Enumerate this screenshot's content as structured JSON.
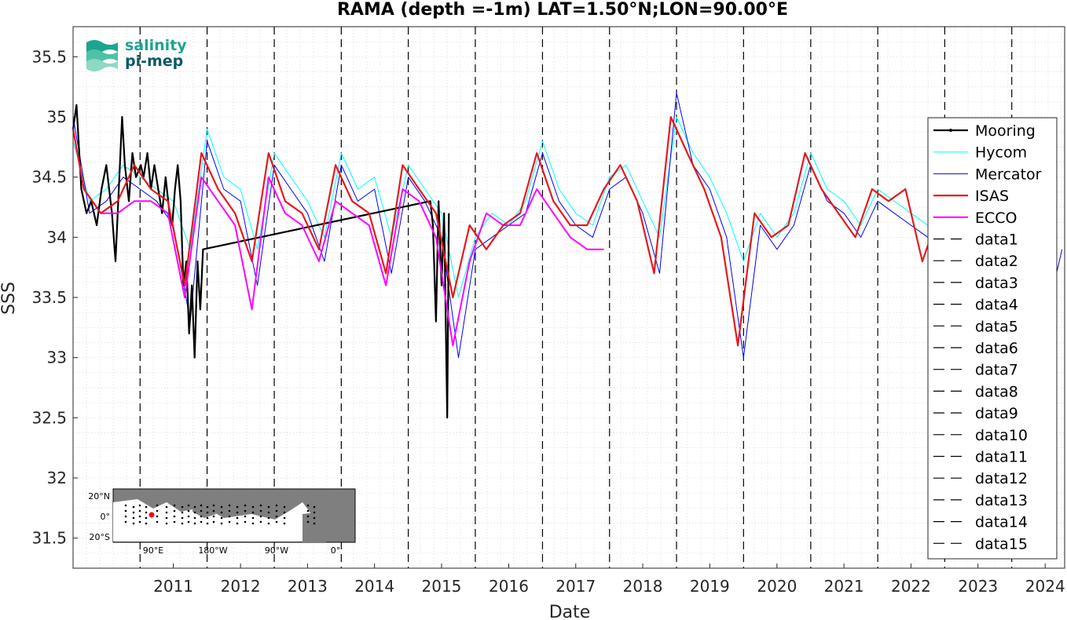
{
  "chart_data": {
    "type": "line",
    "title": "RAMA (depth =-1m) LAT=1.50°N;LON=90.00°E",
    "xlabel": "Date",
    "ylabel": "SSS",
    "xlim": [
      "2010-01-01",
      "2024-10-15"
    ],
    "ylim": [
      31.25,
      35.75
    ],
    "x_ticks": [
      "2011",
      "2012",
      "2013",
      "2014",
      "2015",
      "2016",
      "2017",
      "2018",
      "2019",
      "2020",
      "2021",
      "2022",
      "2023",
      "2024"
    ],
    "y_ticks": [
      "31.5",
      "32",
      "32.5",
      "33",
      "33.5",
      "34",
      "34.5",
      "35",
      "35.5"
    ],
    "grid": "dotted minor",
    "legend_position": "right",
    "legend": [
      "Mooring",
      "Hycom",
      "Mercator",
      "ISAS",
      "ECCO",
      "data1",
      "data2",
      "data3",
      "data4",
      "data5",
      "data6",
      "data7",
      "data8",
      "data9",
      "data10",
      "data11",
      "data12",
      "data13",
      "data14",
      "data15"
    ],
    "year_markers": [
      "2011-01-01",
      "2012-01-01",
      "2013-01-01",
      "2014-01-01",
      "2015-01-01",
      "2016-01-01",
      "2017-01-01",
      "2018-01-01",
      "2019-01-01",
      "2020-01-01",
      "2021-01-01",
      "2022-01-01",
      "2023-01-01",
      "2024-01-01",
      "2025-01-01"
    ],
    "series": [
      {
        "name": "Mooring",
        "color": "#000000",
        "x": [
          "2010-01-01",
          "2010-01-20",
          "2010-02-15",
          "2010-03-15",
          "2010-04-10",
          "2010-05-10",
          "2010-06-05",
          "2010-07-01",
          "2010-08-01",
          "2010-08-20",
          "2010-09-10",
          "2010-09-25",
          "2010-10-10",
          "2010-11-01",
          "2010-11-20",
          "2010-12-10",
          "2011-01-05",
          "2011-01-20",
          "2011-02-10",
          "2011-03-01",
          "2011-03-20",
          "2011-04-10",
          "2011-05-01",
          "2011-05-20",
          "2011-06-10",
          "2011-06-25",
          "2011-07-10",
          "2011-07-25",
          "2011-08-10",
          "2011-08-25",
          "2011-09-10",
          "2011-09-25",
          "2011-10-10",
          "2011-10-25",
          "2011-11-10",
          "2011-11-25",
          "2011-12-10",
          "2015-05-01",
          "2015-05-15",
          "2015-06-01",
          "2015-06-15",
          "2015-07-01",
          "2015-07-15",
          "2015-08-01",
          "2015-08-10"
        ],
        "y": [
          34.9,
          35.1,
          34.4,
          34.2,
          34.3,
          34.1,
          34.4,
          34.6,
          34.2,
          33.8,
          34.5,
          35.0,
          34.6,
          34.3,
          34.7,
          34.5,
          34.6,
          34.5,
          34.7,
          34.4,
          34.6,
          34.4,
          34.2,
          34.5,
          34.2,
          34.1,
          34.4,
          34.6,
          34.3,
          33.6,
          33.8,
          33.2,
          33.6,
          33.0,
          33.8,
          33.4,
          33.9,
          34.3,
          34.1,
          33.3,
          34.3,
          33.6,
          34.2,
          32.5,
          34.2
        ]
      },
      {
        "name": "Hycom",
        "color": "#00ffff",
        "x": [
          "2010-01-01",
          "2010-04-01",
          "2010-07-01",
          "2010-10-01",
          "2011-01-01",
          "2011-04-01",
          "2011-07-01",
          "2011-10-01",
          "2012-01-01",
          "2012-04-01",
          "2012-07-01",
          "2012-10-01",
          "2013-01-01",
          "2013-04-01",
          "2013-07-01",
          "2013-10-01",
          "2014-01-01",
          "2014-04-01",
          "2014-07-01",
          "2014-10-01",
          "2015-01-01",
          "2015-04-01",
          "2015-07-01",
          "2015-10-01",
          "2016-01-01",
          "2016-04-01",
          "2016-07-01",
          "2016-10-01",
          "2017-01-01",
          "2017-04-01",
          "2017-07-01",
          "2017-10-01",
          "2018-01-01",
          "2018-04-01",
          "2018-07-01",
          "2018-10-01",
          "2019-01-01",
          "2019-04-01",
          "2019-07-01",
          "2019-10-01",
          "2020-01-01",
          "2020-04-01",
          "2020-07-01",
          "2020-10-01",
          "2021-01-01",
          "2021-04-01",
          "2021-07-01",
          "2021-10-01",
          "2022-01-01",
          "2022-04-01",
          "2022-07-01",
          "2022-10-01",
          "2022-12-01"
        ],
        "y": [
          34.8,
          34.3,
          34.4,
          34.6,
          34.5,
          34.4,
          34.3,
          33.9,
          34.9,
          34.5,
          34.4,
          33.9,
          34.7,
          34.5,
          34.3,
          34.0,
          34.7,
          34.4,
          34.5,
          34.0,
          34.6,
          34.4,
          34.2,
          33.5,
          34.0,
          34.2,
          34.1,
          34.3,
          34.8,
          34.4,
          34.2,
          34.1,
          34.5,
          34.6,
          34.3,
          34.0,
          35.0,
          34.7,
          34.5,
          34.2,
          33.8,
          34.2,
          34.0,
          34.2,
          34.7,
          34.4,
          34.3,
          34.1,
          34.4,
          34.3,
          34.2,
          34.1,
          34.9
        ]
      },
      {
        "name": "Mercator",
        "color": "#0000ff",
        "x": [
          "2010-01-01",
          "2010-04-01",
          "2010-07-01",
          "2010-10-01",
          "2011-01-01",
          "2011-04-01",
          "2011-07-01",
          "2011-10-01",
          "2012-01-01",
          "2012-04-01",
          "2012-07-01",
          "2012-10-01",
          "2013-01-01",
          "2013-04-01",
          "2013-07-01",
          "2013-10-01",
          "2014-01-01",
          "2014-04-01",
          "2014-07-01",
          "2014-10-01",
          "2015-01-01",
          "2015-04-01",
          "2015-07-01",
          "2015-10-01",
          "2016-01-01",
          "2016-04-01",
          "2016-07-01",
          "2016-10-01",
          "2017-01-01",
          "2017-04-01",
          "2017-07-01",
          "2017-10-01",
          "2018-01-01",
          "2018-04-01",
          "2018-07-01",
          "2018-10-01",
          "2019-01-01",
          "2019-04-01",
          "2019-07-01",
          "2019-10-01",
          "2020-01-01",
          "2020-04-01",
          "2020-07-01",
          "2020-10-01",
          "2021-01-01",
          "2021-04-01",
          "2021-07-01",
          "2021-10-01",
          "2022-01-01",
          "2022-04-01",
          "2022-07-01",
          "2022-10-01",
          "2024-08-01",
          "2024-10-01"
        ],
        "y": [
          35.0,
          34.2,
          34.3,
          34.5,
          34.4,
          34.3,
          34.1,
          33.3,
          34.8,
          34.4,
          34.3,
          33.6,
          34.6,
          34.4,
          34.2,
          33.8,
          34.6,
          34.3,
          34.4,
          33.7,
          34.5,
          34.3,
          34.0,
          33.0,
          33.9,
          34.0,
          34.1,
          34.2,
          34.7,
          34.3,
          34.1,
          34.0,
          34.4,
          34.5,
          34.2,
          33.7,
          35.2,
          34.6,
          34.4,
          34.0,
          33.0,
          34.1,
          33.9,
          34.1,
          34.6,
          34.3,
          34.2,
          34.0,
          34.3,
          34.2,
          34.1,
          34.0,
          33.5,
          33.9
        ]
      },
      {
        "name": "ISAS",
        "color": "#e41a1c",
        "x": [
          "2010-01-01",
          "2010-03-01",
          "2010-06-01",
          "2010-09-01",
          "2010-12-01",
          "2011-03-01",
          "2011-06-01",
          "2011-09-01",
          "2011-12-01",
          "2012-03-01",
          "2012-06-01",
          "2012-09-01",
          "2012-12-01",
          "2013-03-01",
          "2013-06-01",
          "2013-09-01",
          "2013-12-01",
          "2014-03-01",
          "2014-06-01",
          "2014-09-01",
          "2014-12-01",
          "2015-03-01",
          "2015-06-01",
          "2015-09-01",
          "2015-12-01",
          "2016-03-01",
          "2016-06-01",
          "2016-09-01",
          "2016-12-01",
          "2017-03-01",
          "2017-06-01",
          "2017-09-01",
          "2017-12-01",
          "2018-03-01",
          "2018-06-01",
          "2018-09-01",
          "2018-12-01",
          "2019-03-01",
          "2019-06-01",
          "2019-09-01",
          "2019-12-01",
          "2020-03-01",
          "2020-06-01",
          "2020-09-01",
          "2020-12-01",
          "2021-03-01",
          "2021-06-01",
          "2021-09-01",
          "2021-12-01",
          "2022-03-01",
          "2022-06-01",
          "2022-09-01",
          "2022-12-01"
        ],
        "y": [
          34.9,
          34.4,
          34.2,
          34.3,
          34.6,
          34.4,
          34.3,
          33.6,
          34.7,
          34.4,
          34.2,
          33.8,
          34.7,
          34.3,
          34.2,
          33.9,
          34.6,
          34.3,
          34.2,
          33.7,
          34.6,
          34.4,
          34.2,
          33.5,
          34.1,
          33.9,
          34.1,
          34.2,
          34.7,
          34.3,
          34.1,
          34.1,
          34.4,
          34.6,
          34.3,
          33.7,
          35.0,
          34.7,
          34.4,
          34.0,
          33.1,
          34.2,
          34.0,
          34.1,
          34.7,
          34.4,
          34.2,
          34.0,
          34.4,
          34.3,
          34.4,
          33.8,
          34.2
        ]
      },
      {
        "name": "ECCO",
        "color": "#ff00ff",
        "x": [
          "2010-01-01",
          "2010-03-01",
          "2010-06-01",
          "2010-09-01",
          "2010-12-01",
          "2011-03-01",
          "2011-06-01",
          "2011-09-01",
          "2011-12-01",
          "2012-03-01",
          "2012-06-01",
          "2012-09-01",
          "2012-12-01",
          "2013-03-01",
          "2013-06-01",
          "2013-09-01",
          "2013-12-01",
          "2014-03-01",
          "2014-06-01",
          "2014-09-01",
          "2014-12-01",
          "2015-03-01",
          "2015-06-01",
          "2015-09-01",
          "2015-12-01",
          "2016-03-01",
          "2016-06-01",
          "2016-09-01",
          "2016-12-01",
          "2017-03-01",
          "2017-06-01",
          "2017-09-01",
          "2017-12-01"
        ],
        "y": [
          34.9,
          34.4,
          34.2,
          34.2,
          34.3,
          34.3,
          34.2,
          33.5,
          34.5,
          34.3,
          34.1,
          33.4,
          34.5,
          34.2,
          34.1,
          33.8,
          34.3,
          34.2,
          34.1,
          33.6,
          34.4,
          34.3,
          34.0,
          33.1,
          33.8,
          34.2,
          34.1,
          34.1,
          34.4,
          34.2,
          34.0,
          33.9,
          33.9
        ]
      }
    ]
  },
  "logo": {
    "line1": "salinity",
    "line2": "pi-mep"
  },
  "inset_map": {
    "lat_labels": [
      "20°N",
      "0°",
      "20°S"
    ],
    "lon_labels": [
      "90°E",
      "180°W",
      "90°W",
      "0°"
    ]
  }
}
